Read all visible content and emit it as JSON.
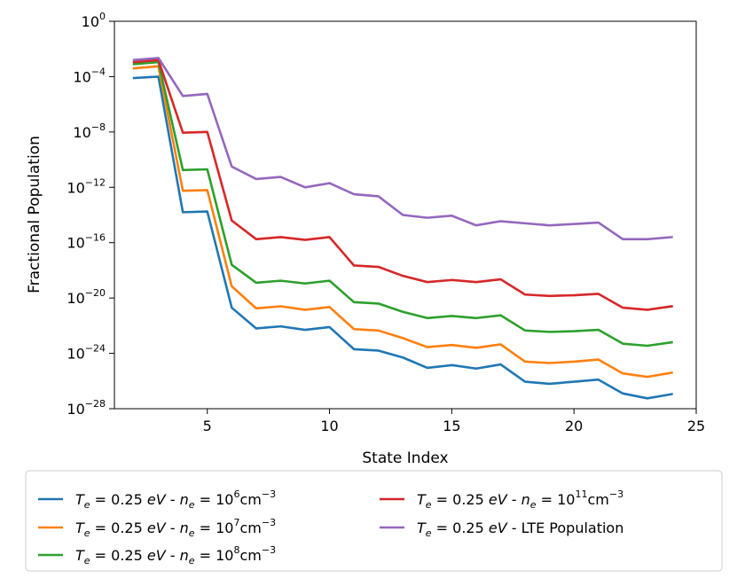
{
  "chart_data": {
    "type": "line",
    "title": "",
    "xlabel": "State Index",
    "ylabel": "Fractional Population",
    "xlim": [
      1.2,
      25
    ],
    "ylim_log10": [
      -28,
      0
    ],
    "yscale": "log",
    "grid": false,
    "legend_position": "below",
    "x_ticks": [
      5,
      10,
      15,
      20,
      25
    ],
    "x_tick_labels": [
      "5",
      "10",
      "15",
      "20",
      "25"
    ],
    "y_ticks_log10": [
      -28,
      -24,
      -20,
      -16,
      -12,
      -8,
      -4,
      0
    ],
    "y_tick_base": "10",
    "y_tick_exponents": [
      "−28",
      "−24",
      "−20",
      "−16",
      "−12",
      "−8",
      "−4",
      "0"
    ],
    "x": [
      2,
      3,
      4,
      5,
      6,
      7,
      8,
      9,
      10,
      11,
      12,
      13,
      14,
      15,
      16,
      17,
      18,
      19,
      20,
      21,
      22,
      23,
      24
    ],
    "legend_prefix": "T",
    "legend_subscript": "e",
    "legend_te_value": " = 0.25 ",
    "legend_unit_ev": "eV",
    "legend_separator": " - ",
    "legend_ne_symbol": "n",
    "legend_ne_equals": " = 10",
    "legend_cm": "cm",
    "legend_cm_exponent": "−3",
    "series": [
      {
        "name": "Te = 0.25 eV - ne = 10^6 cm^-3",
        "ne_exponent": "6",
        "label_text": "",
        "color": "#1f77b4",
        "values_log10": [
          -4.1,
          -4.0,
          -13.8,
          -13.75,
          -20.7,
          -22.2,
          -22.05,
          -22.3,
          -22.1,
          -23.7,
          -23.8,
          -24.3,
          -25.05,
          -24.85,
          -25.1,
          -24.8,
          -26.05,
          -26.2,
          -26.05,
          -25.9,
          -26.9,
          -27.25,
          -26.95
        ]
      },
      {
        "name": "Te = 0.25 eV - ne = 10^7 cm^-3",
        "ne_exponent": "7",
        "label_text": "",
        "color": "#ff7f0e",
        "values_log10": [
          -3.4,
          -3.25,
          -12.25,
          -12.2,
          -19.15,
          -20.75,
          -20.6,
          -20.85,
          -20.65,
          -22.25,
          -22.35,
          -22.9,
          -23.55,
          -23.4,
          -23.6,
          -23.35,
          -24.6,
          -24.7,
          -24.6,
          -24.45,
          -25.45,
          -25.7,
          -25.4
        ]
      },
      {
        "name": "Te = 0.25 eV - ne = 10^8 cm^-3",
        "ne_exponent": "8",
        "label_text": "",
        "color": "#2ca02c",
        "values_log10": [
          -3.1,
          -2.95,
          -10.75,
          -10.7,
          -17.6,
          -18.9,
          -18.75,
          -18.95,
          -18.75,
          -20.3,
          -20.4,
          -21.0,
          -21.45,
          -21.3,
          -21.45,
          -21.25,
          -22.35,
          -22.45,
          -22.4,
          -22.3,
          -23.3,
          -23.45,
          -23.2
        ]
      },
      {
        "name": "Te = 0.25 eV - ne = 10^11 cm^-3",
        "ne_exponent": "11",
        "label_text": "",
        "color": "#d62728",
        "values_log10": [
          -2.95,
          -2.8,
          -8.05,
          -8.0,
          -14.4,
          -15.75,
          -15.6,
          -15.8,
          -15.6,
          -17.65,
          -17.75,
          -18.4,
          -18.85,
          -18.7,
          -18.85,
          -18.65,
          -19.75,
          -19.85,
          -19.8,
          -19.7,
          -20.7,
          -20.85,
          -20.6
        ]
      },
      {
        "name": "Te = 0.25 eV - LTE Population",
        "ne_exponent": "",
        "label_text": "LTE Population",
        "color": "#9467bd",
        "values_log10": [
          -2.8,
          -2.65,
          -5.4,
          -5.25,
          -10.5,
          -11.4,
          -11.25,
          -12.0,
          -11.7,
          -12.5,
          -12.65,
          -14.0,
          -14.2,
          -14.05,
          -14.75,
          -14.45,
          -14.6,
          -14.75,
          -14.65,
          -14.55,
          -15.75,
          -15.75,
          -15.6
        ]
      }
    ]
  }
}
